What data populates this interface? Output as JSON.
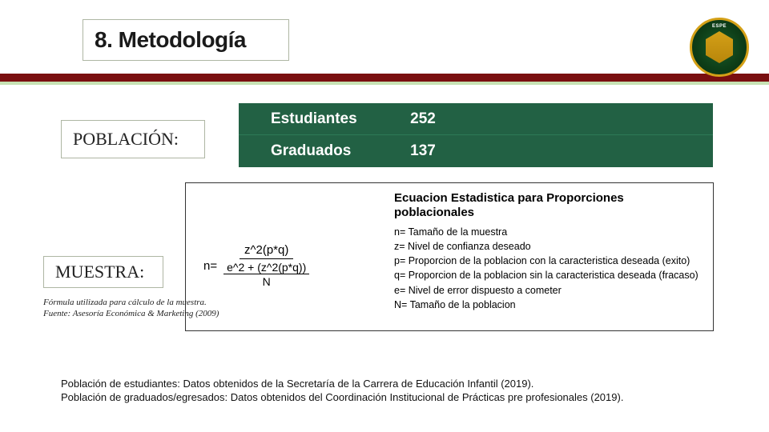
{
  "colors": {
    "rule_dark": "#7a0f10",
    "rule_light": "#c6e2b3",
    "table_bg": "#226144",
    "table_text": "#ffffff",
    "box_border": "#aeb6a3",
    "text_primary": "#1a1a1a"
  },
  "logo": {
    "top_label": "ESPE"
  },
  "title": "8. Metodología",
  "labels": {
    "poblacion": "POBLACIÓN:",
    "muestra": "MUESTRA:"
  },
  "population_table": {
    "rows": [
      {
        "label": "Estudiantes",
        "value": "252"
      },
      {
        "label": "Graduados",
        "value": "137"
      }
    ]
  },
  "formula": {
    "title": "Ecuacion Estadistica para Proporciones poblacionales",
    "lhs": "n=",
    "numerator": "z^2(p*q)",
    "denominator_main": "e^2 + (z^2(p*q))",
    "denominator_sub": "N",
    "legend": {
      "n": "n= Tamaño de la muestra",
      "z": "z= Nivel de confianza deseado",
      "p": "p= Proporcion de la poblacion con la caracteristica deseada (exito)",
      "q": "q= Proporcion de la poblacion sin la caracteristica deseada (fracaso)",
      "e": "e= Nivel de error dispuesto a cometer",
      "N": "N= Tamaño de la poblacion"
    }
  },
  "formula_caption": {
    "line1": "Fórmula utilizada para cálculo de la muestra.",
    "line2": "Fuente: Asesoría Económica & Marketing (2009)"
  },
  "sources": {
    "line1": "Población de estudiantes: Datos obtenidos de la Secretaría de la Carrera de Educación Infantil (2019).",
    "line2": "Población de graduados/egresados: Datos obtenidos del Coordinación Institucional de  Prácticas pre profesionales (2019)."
  }
}
